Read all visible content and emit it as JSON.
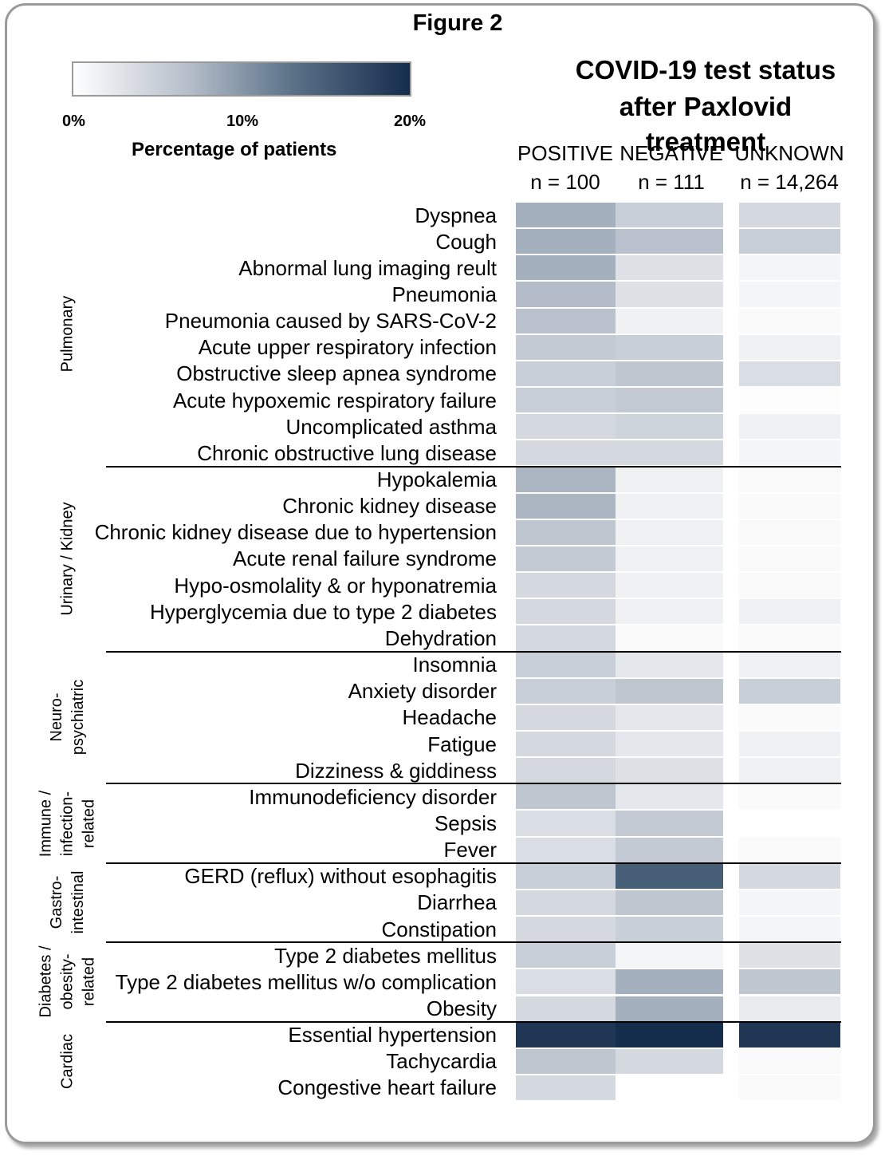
{
  "chart_data": {
    "type": "heatmap",
    "title": "Figure 2",
    "heading_lines": [
      "COVID-19 test status",
      "after Paxlovid treatment"
    ],
    "colorbar": {
      "label": "Percentage of patients",
      "ticks": [
        "0%",
        "10%",
        "20%"
      ],
      "range": [
        0,
        20
      ],
      "colors": [
        "#ffffff",
        "#152d4d"
      ]
    },
    "columns": [
      {
        "name": "POSITIVE",
        "n": "n = 100"
      },
      {
        "name": "NEGATIVE",
        "n": "n = 111"
      },
      {
        "name": "UNKNOWN",
        "n": "n = 14,264"
      }
    ],
    "groups": [
      {
        "label": "Pulmonary",
        "rows": [
          {
            "label": "Dyspnea",
            "values": [
              8,
              5,
              4
            ]
          },
          {
            "label": "Cough",
            "values": [
              8,
              6.5,
              5
            ]
          },
          {
            "label": "Abnormal lung imaging reult",
            "values": [
              8,
              3,
              1
            ]
          },
          {
            "label": "Pneumonia",
            "values": [
              7,
              3,
              1
            ]
          },
          {
            "label": "Pneumonia caused by SARS-CoV-2",
            "values": [
              6.5,
              1.5,
              0.5
            ]
          },
          {
            "label": "Acute upper respiratory infection",
            "values": [
              5.5,
              5,
              1.5
            ]
          },
          {
            "label": "Obstructive sleep apnea syndrome",
            "values": [
              5,
              6,
              3.5
            ]
          },
          {
            "label": "Acute hypoxemic respiratory failure",
            "values": [
              5,
              5.5,
              0.2
            ]
          },
          {
            "label": "Uncomplicated asthma",
            "values": [
              4,
              4.5,
              1.5
            ]
          },
          {
            "label": "Chronic obstructive lung disease",
            "values": [
              4,
              4,
              1
            ]
          }
        ]
      },
      {
        "label": "Urinary / Kidney",
        "rows": [
          {
            "label": "Hypokalemia",
            "values": [
              7.5,
              1.5,
              0.5
            ]
          },
          {
            "label": "Chronic kidney disease",
            "values": [
              7.5,
              1.5,
              0.5
            ]
          },
          {
            "label": "Chronic kidney disease due to hypertension",
            "values": [
              6,
              1.5,
              0.5
            ]
          },
          {
            "label": "Acute renal failure syndrome",
            "values": [
              5.5,
              1.5,
              0.5
            ]
          },
          {
            "label": "Hypo-osmolality & or hyponatremia",
            "values": [
              4,
              1.5,
              0.5
            ]
          },
          {
            "label": "Hyperglycemia due to type 2 diabetes",
            "values": [
              4,
              1.5,
              1.5
            ]
          },
          {
            "label": "Dehydration",
            "values": [
              4,
              0.5,
              0.5
            ]
          }
        ]
      },
      {
        "label": "Neuro-\npsychiatric",
        "rows": [
          {
            "label": "Insomnia",
            "values": [
              5,
              2.5,
              1.5
            ]
          },
          {
            "label": "Anxiety disorder",
            "values": [
              5,
              6,
              5
            ]
          },
          {
            "label": "Headache",
            "values": [
              4,
              2.5,
              0.5
            ]
          },
          {
            "label": "Fatigue",
            "values": [
              4,
              2.5,
              1.5
            ]
          },
          {
            "label": "Dizziness & giddiness",
            "values": [
              4,
              3,
              1.5
            ]
          }
        ]
      },
      {
        "label": "Immune /\ninfection-\nrelated",
        "rows": [
          {
            "label": "Immunodeficiency disorder",
            "values": [
              6,
              2.5,
              0.5
            ]
          },
          {
            "label": "Sepsis",
            "values": [
              3.5,
              5.5,
              0
            ]
          },
          {
            "label": "Fever",
            "values": [
              3.5,
              5.5,
              0.5
            ]
          }
        ]
      },
      {
        "label": "Gastro-\nintestinal",
        "rows": [
          {
            "label": "GERD (reflux) without esophagitis",
            "values": [
              5,
              15,
              4
            ]
          },
          {
            "label": "Diarrhea",
            "values": [
              4,
              6,
              1
            ]
          },
          {
            "label": "Constipation",
            "values": [
              4,
              5,
              1
            ]
          }
        ]
      },
      {
        "label": "Diabetes /\nobesity-\nrelated",
        "rows": [
          {
            "label": "Type 2 diabetes mellitus",
            "values": [
              5,
              1,
              3
            ]
          },
          {
            "label": "Type 2 diabetes mellitus w/o complication",
            "values": [
              3.5,
              8,
              6
            ]
          },
          {
            "label": "Obesity",
            "values": [
              4,
              8,
              2
            ]
          }
        ]
      },
      {
        "label": "Cardiac",
        "rows": [
          {
            "label": "Essential hypertension",
            "values": [
              19,
              20,
              19
            ]
          },
          {
            "label": "Tachycardia",
            "values": [
              6,
              4,
              0.5
            ]
          },
          {
            "label": "Congestive heart failure",
            "values": [
              4,
              null,
              0.5
            ]
          }
        ]
      }
    ]
  }
}
